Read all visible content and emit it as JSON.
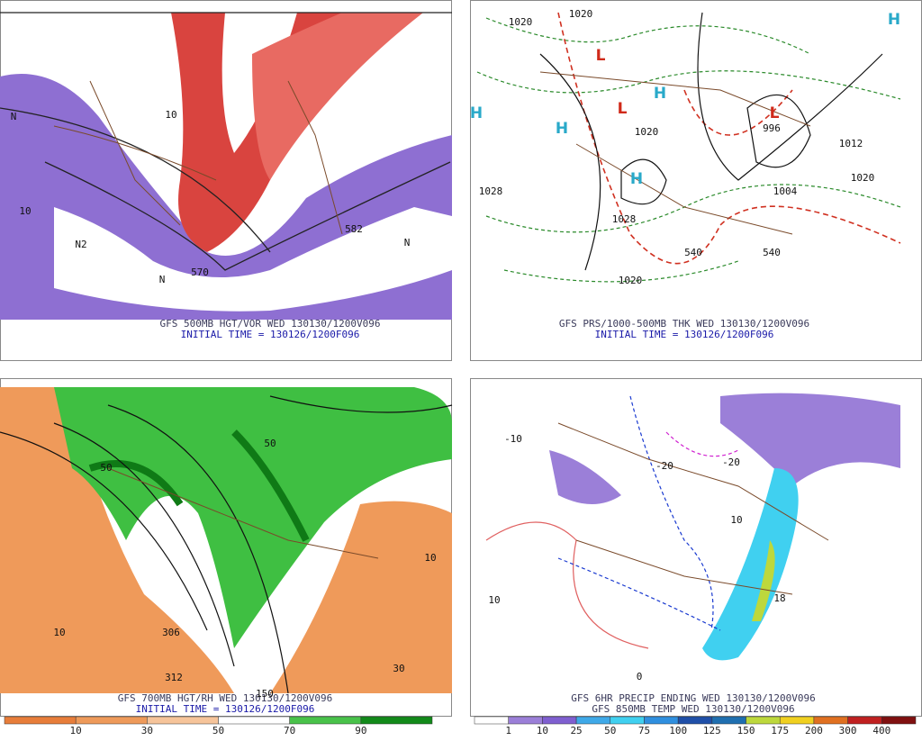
{
  "panels": [
    {
      "caption": [
        "GFS 500MB HGT/VOR WED 130130/1200V096",
        "INITIAL TIME = 130126/1200F096"
      ],
      "labels": [
        "N",
        "10",
        "582",
        "570",
        "N2",
        "N",
        "N",
        "10"
      ]
    },
    {
      "caption": [
        "GFS PRS/1000-500MB THK WED 130130/1200V096",
        "INITIAL TIME = 130126/1200F096"
      ],
      "labels": [
        "1020",
        "1020",
        "1028",
        "1028",
        "1020",
        "1020",
        "1020",
        "1012",
        "996",
        "1004",
        "540",
        "540",
        "H",
        "H",
        "H",
        "H",
        "H",
        "L",
        "L",
        "L"
      ]
    },
    {
      "caption": [
        "GFS 700MB HGT/RH WED 130130/1200V096",
        "INITIAL TIME = 130126/1200F096"
      ],
      "labels": [
        "10",
        "312",
        "306",
        "150",
        "10",
        "30",
        "50",
        "50"
      ]
    },
    {
      "caption": [
        "GFS 6HR PRECIP ENDING WED 130130/1200V096",
        "GFS 850MB TEMP WED 130130/1200V096"
      ],
      "labels": [
        "10",
        "-20",
        "-20",
        "10",
        "18",
        "0",
        "-10"
      ]
    }
  ],
  "colorbars": [
    {
      "labels": [
        "10",
        "30",
        "50",
        "70",
        "90"
      ],
      "colors": [
        "#e77d3a",
        "#ee9a5a",
        "#f6c49a",
        "#ffffff",
        "#49c24a",
        "#128a1a"
      ]
    },
    {
      "labels": [
        "1",
        "10",
        "25",
        "50",
        "75",
        "100",
        "125",
        "150",
        "175",
        "200",
        "300",
        "400"
      ],
      "colors": [
        "#ffffff",
        "#9b7fd8",
        "#7f5fd0",
        "#3fa9e8",
        "#40d0f0",
        "#2f8fdf",
        "#1f4fa8",
        "#1f6fb0",
        "#bdd83c",
        "#f0d020",
        "#e07020",
        "#c02020",
        "#801010"
      ]
    }
  ]
}
